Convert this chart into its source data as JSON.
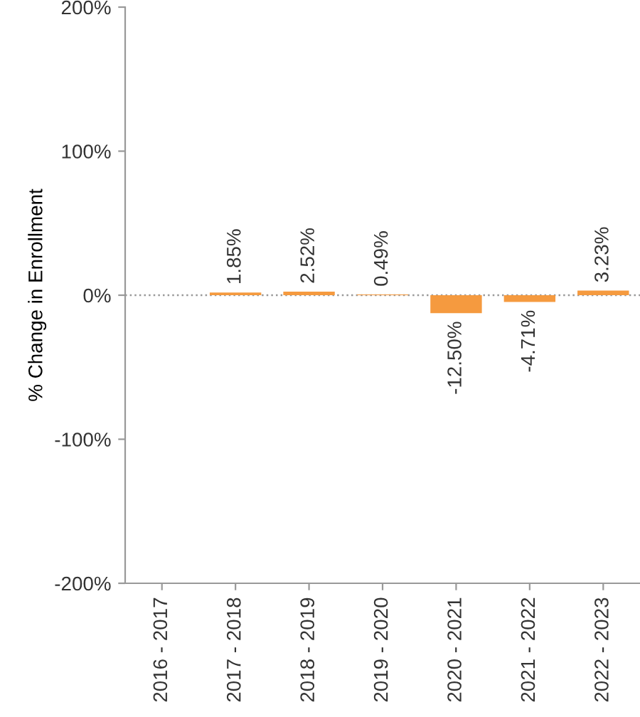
{
  "chart_data": {
    "type": "bar",
    "ylabel": "% Change in Enrollment",
    "categories": [
      "2016 - 2017",
      "2017 - 2018",
      "2018 - 2019",
      "2019 - 2020",
      "2020 - 2021",
      "2021 - 2022",
      "2022 - 2023"
    ],
    "values": [
      null,
      1.85,
      2.52,
      0.49,
      -12.5,
      -4.71,
      3.23
    ],
    "value_labels": [
      null,
      "1.85%",
      "2.52%",
      "0.49%",
      "-12.50%",
      "-4.71%",
      "3.23%"
    ],
    "color": "#f59a3f",
    "ylim": [
      -200,
      200
    ],
    "yticks": [
      {
        "value": -200,
        "label": "-200%"
      },
      {
        "value": -100,
        "label": "-100%"
      },
      {
        "value": 0,
        "label": "0%"
      },
      {
        "value": 100,
        "label": "100%"
      },
      {
        "value": 200,
        "label": "200%"
      }
    ],
    "ref_lines": [
      {
        "axis": "y",
        "value": 0,
        "line_style": "dotted",
        "color": "#999999"
      }
    ],
    "grid": false,
    "legend": false
  }
}
